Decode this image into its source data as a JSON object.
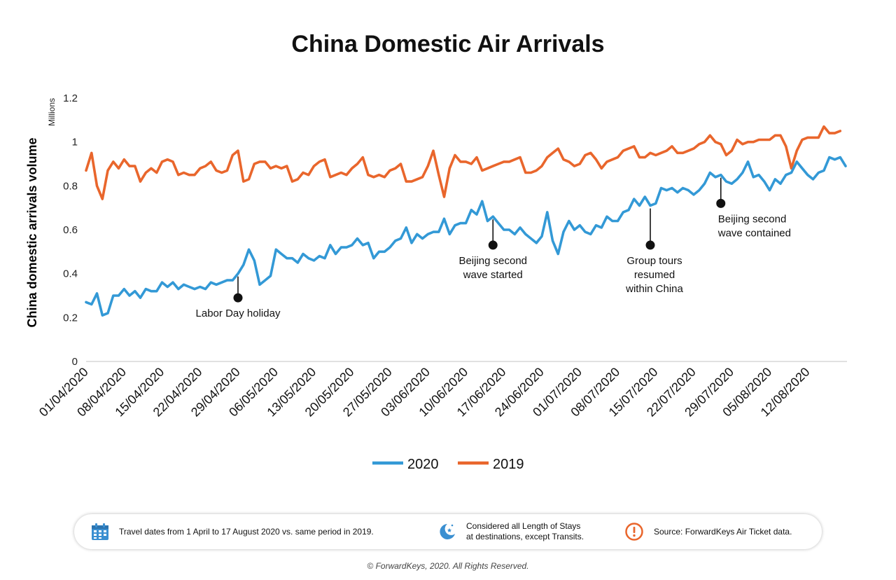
{
  "chart_data": {
    "type": "line",
    "title": "China Domestic Air Arrivals",
    "ylabel": "China domestic arrivals volume",
    "yunit": "Millions",
    "ylim": [
      0,
      1.2
    ],
    "yticks": [
      "0",
      "0.2",
      "0.4",
      "0.6",
      "0.8",
      "1",
      "1.2"
    ],
    "xrange": [
      "01/04/2020",
      "17/08/2020"
    ],
    "xticks": [
      "01/04/2020",
      "08/04/2020",
      "15/04/2020",
      "22/04/2020",
      "29/04/2020",
      "06/05/2020",
      "13/05/2020",
      "20/05/2020",
      "27/05/2020",
      "03/06/2020",
      "10/06/2020",
      "17/06/2020",
      "24/06/2020",
      "01/07/2020",
      "08/07/2020",
      "15/07/2020",
      "22/07/2020",
      "29/07/2020",
      "05/08/2020",
      "12/08/2020"
    ],
    "legend_position": "bottom",
    "grid": false,
    "series": [
      {
        "name": "2020",
        "color": "#3399d6",
        "values": [
          0.27,
          0.26,
          0.31,
          0.21,
          0.22,
          0.3,
          0.3,
          0.33,
          0.3,
          0.32,
          0.29,
          0.33,
          0.32,
          0.32,
          0.36,
          0.34,
          0.36,
          0.33,
          0.35,
          0.34,
          0.33,
          0.34,
          0.33,
          0.36,
          0.35,
          0.36,
          0.37,
          0.37,
          0.4,
          0.44,
          0.51,
          0.46,
          0.35,
          0.37,
          0.39,
          0.51,
          0.49,
          0.47,
          0.47,
          0.45,
          0.49,
          0.47,
          0.46,
          0.48,
          0.47,
          0.53,
          0.49,
          0.52,
          0.52,
          0.53,
          0.56,
          0.53,
          0.54,
          0.47,
          0.5,
          0.5,
          0.52,
          0.55,
          0.56,
          0.61,
          0.54,
          0.58,
          0.56,
          0.58,
          0.59,
          0.59,
          0.65,
          0.58,
          0.62,
          0.63,
          0.63,
          0.69,
          0.67,
          0.73,
          0.64,
          0.66,
          0.63,
          0.6,
          0.6,
          0.58,
          0.61,
          0.58,
          0.56,
          0.54,
          0.57,
          0.68,
          0.55,
          0.49,
          0.59,
          0.64,
          0.6,
          0.62,
          0.59,
          0.58,
          0.62,
          0.61,
          0.66,
          0.64,
          0.64,
          0.68,
          0.69,
          0.74,
          0.71,
          0.75,
          0.71,
          0.72,
          0.79,
          0.78,
          0.79,
          0.77,
          0.79,
          0.78,
          0.76,
          0.78,
          0.81,
          0.86,
          0.84,
          0.85,
          0.82,
          0.81,
          0.83,
          0.86,
          0.91,
          0.84,
          0.85,
          0.82,
          0.78,
          0.83,
          0.81,
          0.85,
          0.86,
          0.91,
          0.88,
          0.85,
          0.83,
          0.86,
          0.87,
          0.93,
          0.92,
          0.93,
          0.89
        ]
      },
      {
        "name": "2019",
        "color": "#e9662c",
        "values": [
          0.87,
          0.95,
          0.8,
          0.74,
          0.87,
          0.91,
          0.88,
          0.92,
          0.89,
          0.89,
          0.82,
          0.86,
          0.88,
          0.86,
          0.91,
          0.92,
          0.91,
          0.85,
          0.86,
          0.85,
          0.85,
          0.88,
          0.89,
          0.91,
          0.87,
          0.86,
          0.87,
          0.94,
          0.96,
          0.82,
          0.83,
          0.9,
          0.91,
          0.91,
          0.88,
          0.89,
          0.88,
          0.89,
          0.82,
          0.83,
          0.86,
          0.85,
          0.89,
          0.91,
          0.92,
          0.84,
          0.85,
          0.86,
          0.85,
          0.88,
          0.9,
          0.93,
          0.85,
          0.84,
          0.85,
          0.84,
          0.87,
          0.88,
          0.9,
          0.82,
          0.82,
          0.83,
          0.84,
          0.89,
          0.96,
          0.85,
          0.75,
          0.88,
          0.94,
          0.91,
          0.91,
          0.9,
          0.93,
          0.87,
          0.88,
          0.89,
          0.9,
          0.91,
          0.91,
          0.92,
          0.93,
          0.86,
          0.86,
          0.87,
          0.89,
          0.93,
          0.95,
          0.97,
          0.92,
          0.91,
          0.89,
          0.9,
          0.94,
          0.95,
          0.92,
          0.88,
          0.91,
          0.92,
          0.93,
          0.96,
          0.97,
          0.98,
          0.93,
          0.93,
          0.95,
          0.94,
          0.95,
          0.96,
          0.98,
          0.95,
          0.95,
          0.96,
          0.97,
          0.99,
          1.0,
          1.03,
          1.0,
          0.99,
          0.94,
          0.96,
          1.01,
          0.99,
          1.0,
          1.0,
          1.01,
          1.01,
          1.01,
          1.03,
          1.03,
          0.98,
          0.88,
          0.96,
          1.01,
          1.02,
          1.02,
          1.02,
          1.07,
          1.04,
          1.04,
          1.05
        ]
      }
    ],
    "annotations": [
      {
        "lines": [
          "Labor Day holiday"
        ],
        "x": "29/04/2020",
        "value": 0.29
      },
      {
        "lines": [
          "Beijing second",
          "wave started"
        ],
        "x": "15/06/2020",
        "value": 0.53
      },
      {
        "lines": [
          "Group tours",
          "resumed",
          "within China"
        ],
        "x": "14/07/2020",
        "value": 0.53
      },
      {
        "lines": [
          "Beijing second",
          "wave contained"
        ],
        "x": "27/07/2020",
        "value": 0.72
      }
    ]
  },
  "footer": {
    "items": [
      {
        "icon": "calendar-icon",
        "color": "#3a8fd1",
        "lines": [
          "Travel dates from 1 April to 17 August 2020 vs. same period in 2019."
        ]
      },
      {
        "icon": "moon-stars-icon",
        "color": "#3a8fd1",
        "lines": [
          "Considered all Length of Stays",
          "at destinations, except Transits."
        ]
      },
      {
        "icon": "exclamation-icon",
        "color": "#e9662c",
        "lines": [
          "Source: ForwardKeys Air Ticket data."
        ]
      }
    ],
    "copyright": "© ForwardKeys, 2020. All Rights Reserved."
  }
}
